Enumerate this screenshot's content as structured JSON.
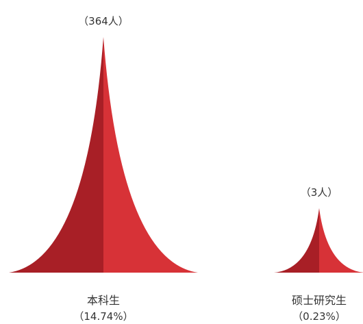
{
  "chart_data": {
    "type": "bar",
    "style": "pictorial-spike",
    "categories": [
      "本科生",
      "硕士研究生"
    ],
    "values": [
      364,
      3
    ],
    "value_labels": [
      "（364人）",
      "（3人）"
    ],
    "percent_labels": [
      "（14.74%）",
      "（0.23%）"
    ],
    "colors": {
      "dark": "#a81f26",
      "light": "#d73237"
    },
    "title": "",
    "xlabel": "",
    "ylabel": ""
  }
}
